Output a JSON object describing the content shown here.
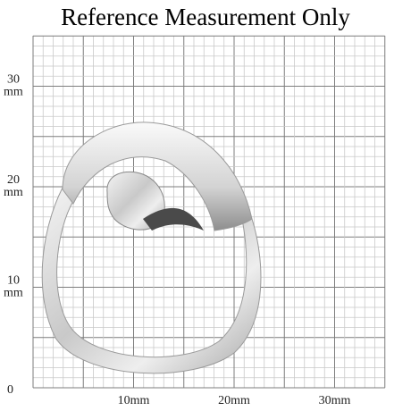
{
  "title": "Reference Measurement Only",
  "y_axis": [
    {
      "number": "30",
      "unit": "mm"
    },
    {
      "number": "20",
      "unit": "mm"
    },
    {
      "number": "10",
      "unit": "mm"
    },
    {
      "number": "0"
    }
  ],
  "x_axis": [
    "10mm",
    "20mm",
    "30mm"
  ]
}
